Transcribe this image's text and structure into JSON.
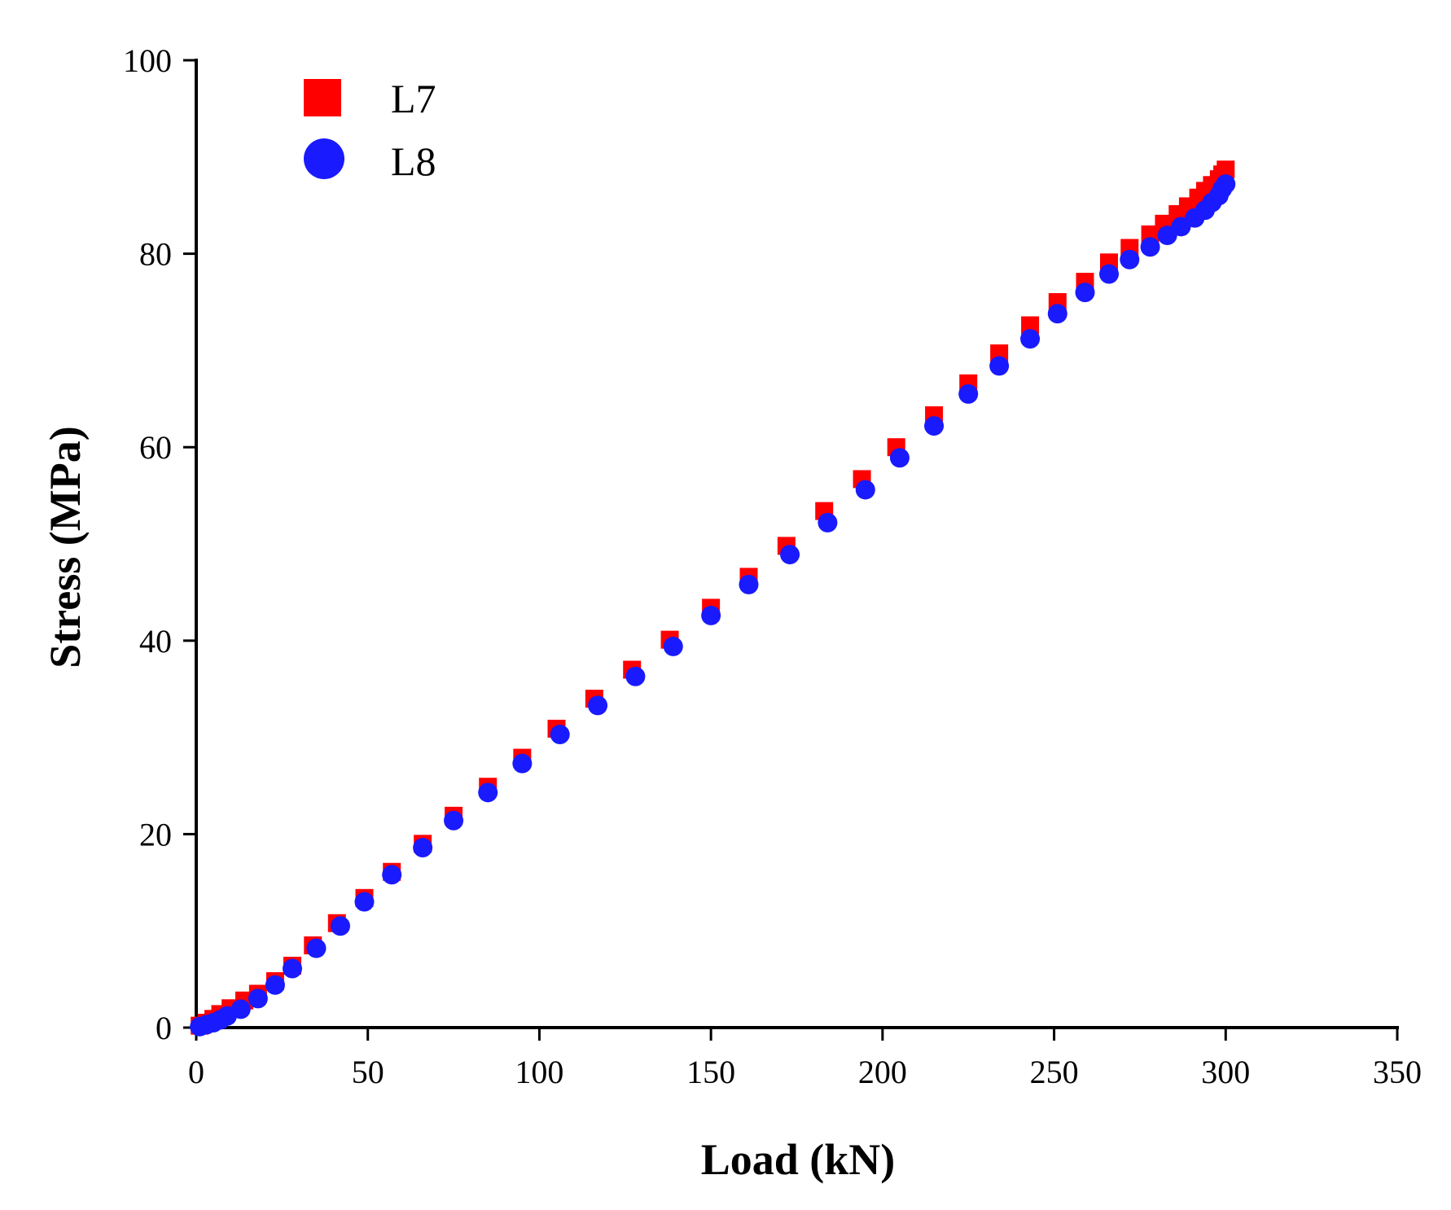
{
  "chart_data": {
    "type": "scatter",
    "title": "",
    "xlabel": "Load (kN)",
    "ylabel": "Stress (MPa)",
    "xlim": [
      0,
      350
    ],
    "ylim": [
      0,
      100
    ],
    "xticks": [
      0,
      50,
      100,
      150,
      200,
      250,
      300,
      350
    ],
    "yticks": [
      0,
      20,
      40,
      60,
      80,
      100
    ],
    "xtick_labels": [
      "0",
      "50",
      "100",
      "150",
      "200",
      "250",
      "300",
      "350"
    ],
    "ytick_labels": [
      "0",
      "20",
      "40",
      "60",
      "80",
      "100"
    ],
    "grid": false,
    "legend_position": "top-left",
    "series": [
      {
        "name": "L7",
        "marker": "square",
        "color": "#ff0000",
        "x": [
          1,
          3,
          5,
          7,
          10,
          14,
          18,
          23,
          28,
          34,
          41,
          49,
          57,
          66,
          75,
          85,
          95,
          105,
          116,
          127,
          138,
          150,
          161,
          172,
          183,
          194,
          204,
          215,
          225,
          234,
          243,
          251,
          259,
          266,
          272,
          278,
          282,
          286,
          289,
          292,
          294,
          296,
          298,
          299,
          300
        ],
        "y": [
          0.2,
          0.5,
          0.9,
          1.4,
          2.0,
          2.8,
          3.5,
          4.8,
          6.4,
          8.5,
          10.8,
          13.4,
          16.1,
          19.0,
          21.9,
          24.9,
          27.9,
          30.9,
          34.0,
          37.0,
          40.1,
          43.4,
          46.6,
          49.8,
          53.4,
          56.7,
          60.0,
          63.3,
          66.6,
          69.7,
          72.6,
          75.0,
          77.1,
          79.1,
          80.6,
          82.0,
          83.1,
          84.1,
          84.9,
          85.8,
          86.5,
          87.1,
          87.7,
          88.2,
          88.7
        ]
      },
      {
        "name": "L8",
        "marker": "circle",
        "color": "#1a1aff",
        "x": [
          1,
          3,
          5,
          7,
          9,
          13,
          18,
          23,
          28,
          35,
          42,
          49,
          57,
          66,
          75,
          85,
          95,
          106,
          117,
          128,
          139,
          150,
          161,
          173,
          184,
          195,
          205,
          215,
          225,
          234,
          243,
          251,
          259,
          266,
          272,
          278,
          283,
          287,
          291,
          294,
          296,
          298,
          299,
          300
        ],
        "y": [
          0.1,
          0.3,
          0.5,
          0.8,
          1.2,
          1.9,
          3.0,
          4.4,
          6.1,
          8.2,
          10.5,
          13.0,
          15.8,
          18.6,
          21.4,
          24.3,
          27.3,
          30.3,
          33.3,
          36.3,
          39.4,
          42.6,
          45.8,
          48.9,
          52.2,
          55.6,
          58.9,
          62.2,
          65.5,
          68.4,
          71.2,
          73.8,
          76.0,
          77.9,
          79.4,
          80.7,
          81.9,
          82.8,
          83.7,
          84.5,
          85.3,
          86.0,
          86.7,
          87.2
        ]
      }
    ]
  }
}
